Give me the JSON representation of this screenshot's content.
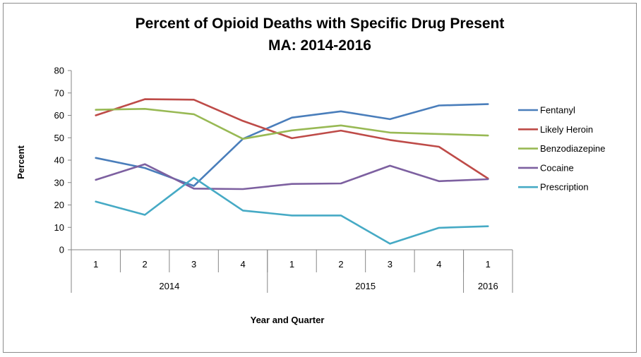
{
  "chart_data": {
    "type": "line",
    "title": "Percent of Opioid Deaths with Specific Drug Present",
    "subtitle": "MA: 2014-2016",
    "xlabel": "Year and Quarter",
    "ylabel": "Percent",
    "ylim": [
      0,
      80
    ],
    "yticks": [
      "0",
      "10",
      "20",
      "30",
      "40",
      "50",
      "60",
      "70",
      "80"
    ],
    "grid": false,
    "legend_position": "right",
    "categories": [
      "1",
      "2",
      "3",
      "4",
      "1",
      "2",
      "3",
      "4",
      "1"
    ],
    "groups": [
      {
        "label": "2014",
        "span": 4
      },
      {
        "label": "2015",
        "span": 4
      },
      {
        "label": "2016",
        "span": 1
      }
    ],
    "series": [
      {
        "name": "Fentanyl",
        "color": "#4a7ebb",
        "values": [
          41,
          36.5,
          28.5,
          49.5,
          59,
          61.8,
          58.3,
          64.4,
          65
        ]
      },
      {
        "name": "Likely Heroin",
        "color": "#be4b48",
        "values": [
          60,
          67.2,
          67,
          57.5,
          49.8,
          53.2,
          49,
          46,
          31.8
        ]
      },
      {
        "name": "Benzodiazepine",
        "color": "#98b954",
        "values": [
          62.5,
          62.9,
          60.5,
          49.5,
          53.3,
          55.5,
          52.3,
          51.7,
          51
        ]
      },
      {
        "name": "Cocaine",
        "color": "#7d60a0",
        "values": [
          31.2,
          38.2,
          27.3,
          27.1,
          29.4,
          29.6,
          37.5,
          30.6,
          31.5
        ]
      },
      {
        "name": "Prescription",
        "color": "#46aac5",
        "values": [
          21.5,
          15.6,
          32.2,
          17.5,
          15.3,
          15.3,
          2.7,
          9.8,
          10.5
        ]
      }
    ]
  }
}
